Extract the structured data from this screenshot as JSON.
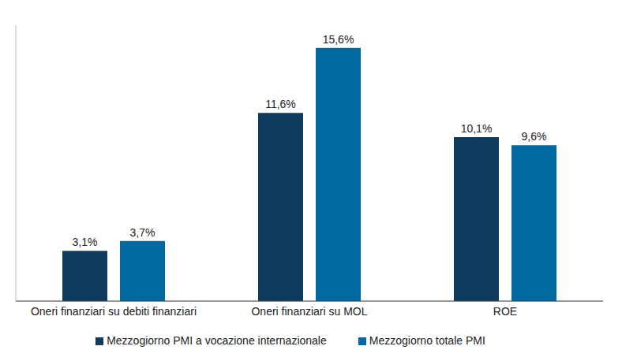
{
  "chart_data": {
    "type": "bar",
    "categories": [
      "Oneri finanziari su debiti finanziari",
      "Oneri finanziari su MOL",
      "ROE"
    ],
    "series": [
      {
        "name": "Mezzogiorno PMI a vocazione internazionale",
        "color": "#0d3a5e",
        "values": [
          3.1,
          11.6,
          10.1
        ],
        "value_labels": [
          "3,1%",
          "11,6%",
          "10,1%"
        ]
      },
      {
        "name": "Mezzogiorno totale PMI",
        "color": "#0069a1",
        "values": [
          3.7,
          15.6,
          9.6
        ],
        "value_labels": [
          "3,7%",
          "15,6%",
          "9,6%"
        ]
      }
    ],
    "ylim": [
      0,
      17
    ],
    "tick_labels": "x",
    "data_labels": true,
    "legend": "bottom",
    "grid": false
  }
}
